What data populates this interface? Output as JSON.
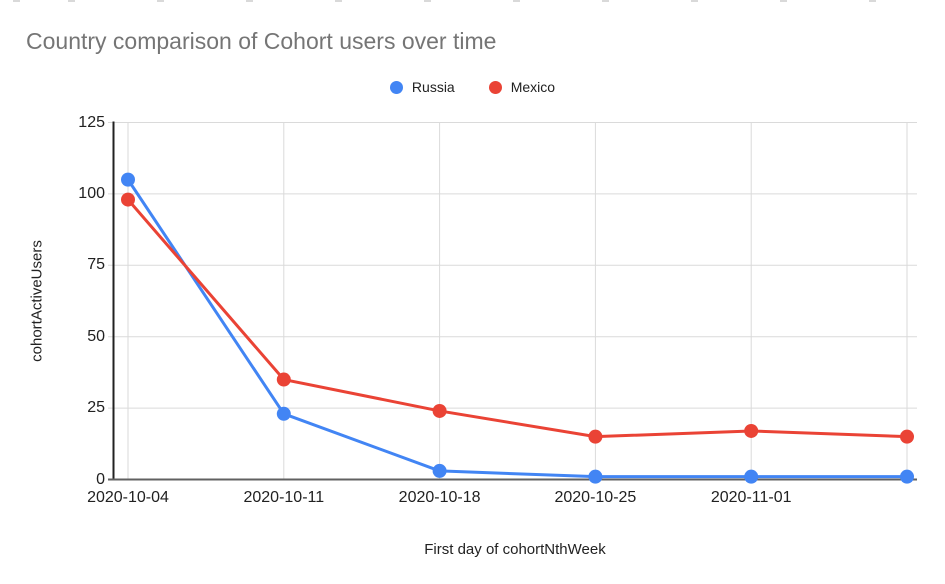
{
  "chart_data": {
    "type": "line",
    "title": "Country comparison of Cohort users over time",
    "xlabel": "First day of cohortNthWeek",
    "ylabel": "cohortActiveUsers",
    "categories": [
      "2020-10-04",
      "2020-10-11",
      "2020-10-18",
      "2020-10-25",
      "2020-11-01",
      ""
    ],
    "series": [
      {
        "name": "Russia",
        "color": "#4285F4",
        "values": [
          105,
          23,
          3,
          1,
          1,
          1
        ]
      },
      {
        "name": "Mexico",
        "color": "#EA4335",
        "values": [
          98,
          35,
          24,
          15,
          17,
          15
        ]
      }
    ],
    "y_ticks": [
      0,
      25,
      50,
      75,
      100,
      125
    ],
    "ylim": [
      0,
      125
    ],
    "grid": true,
    "legend_position": "top",
    "colors": {
      "title": "#757575",
      "tick_labels": "#212121",
      "gridline": "#dadada",
      "y_axis_line": "#212121",
      "x_axis_line": "#616161",
      "background": "#ffffff"
    }
  }
}
